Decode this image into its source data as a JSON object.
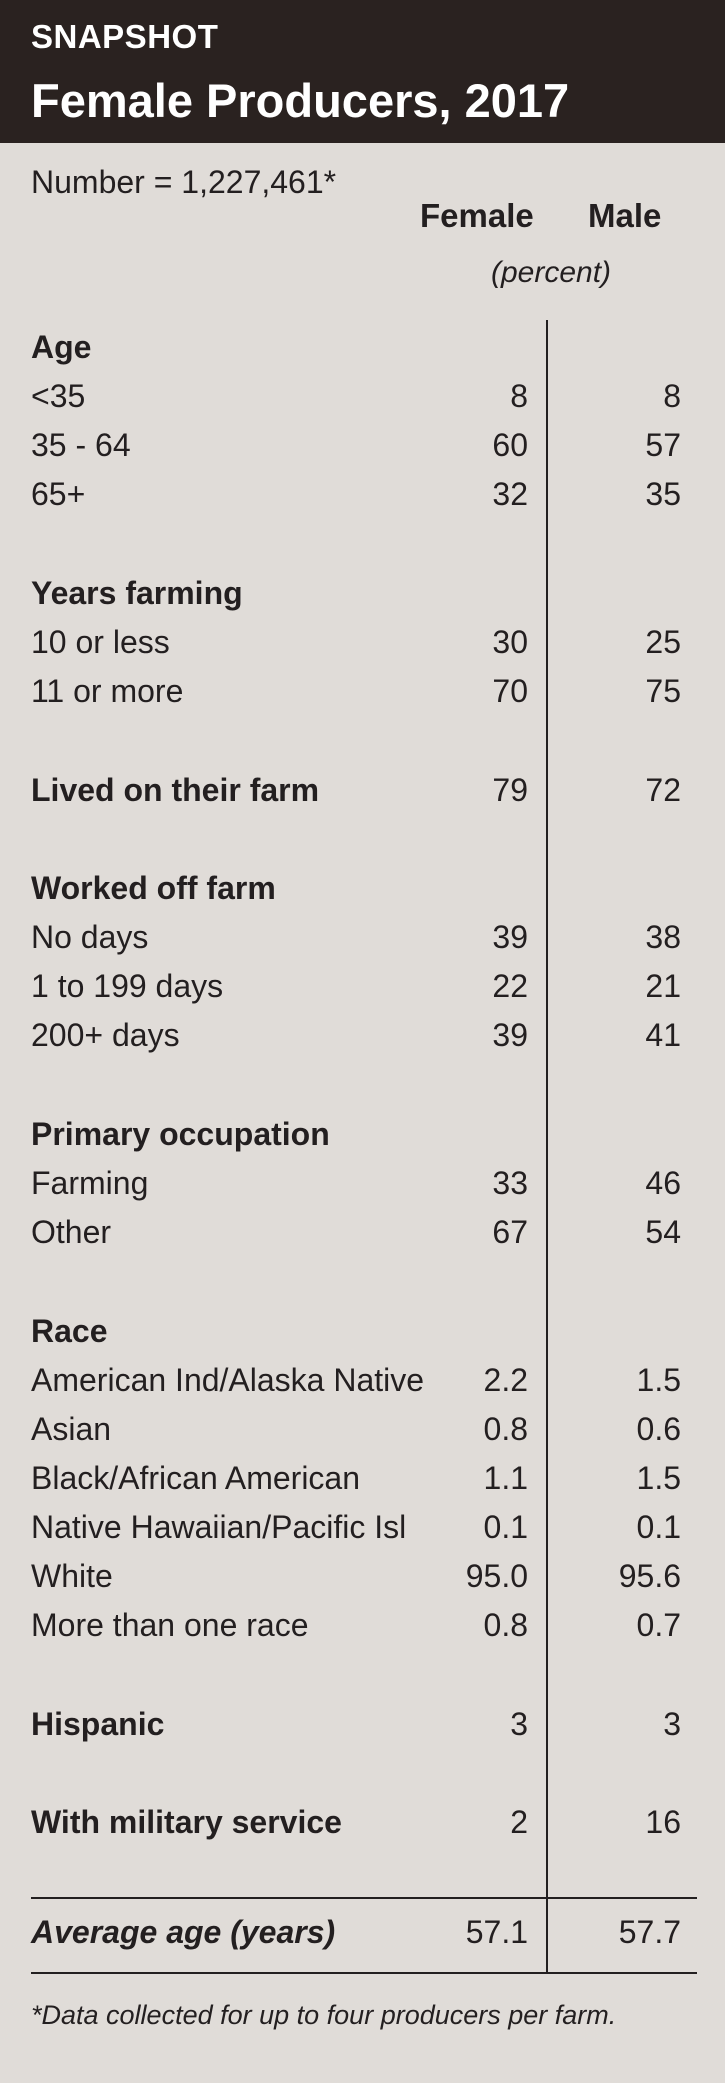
{
  "header": {
    "kicker": "SNAPSHOT",
    "title": "Female Producers, 2017"
  },
  "number_line": "Number = 1,227,461*",
  "columns": {
    "female": "Female",
    "male": "Male",
    "units": "(percent)"
  },
  "sections": {
    "age": {
      "heading": "Age",
      "rows": [
        {
          "label": "<35",
          "female": "8",
          "male": "8"
        },
        {
          "label": "35 - 64",
          "female": "60",
          "male": "57"
        },
        {
          "label": "65+",
          "female": "32",
          "male": "35"
        }
      ]
    },
    "years_farming": {
      "heading": "Years farming",
      "rows": [
        {
          "label": "10 or less",
          "female": "30",
          "male": "25"
        },
        {
          "label": "11 or more",
          "female": "70",
          "male": "75"
        }
      ]
    },
    "lived_on_farm": {
      "label": "Lived on their farm",
      "female": "79",
      "male": "72"
    },
    "worked_off_farm": {
      "heading": "Worked off farm",
      "rows": [
        {
          "label": "No days",
          "female": "39",
          "male": "38"
        },
        {
          "label": "1 to 199 days",
          "female": "22",
          "male": "21"
        },
        {
          "label": "200+ days",
          "female": "39",
          "male": "41"
        }
      ]
    },
    "primary_occupation": {
      "heading": "Primary occupation",
      "rows": [
        {
          "label": "Farming",
          "female": "33",
          "male": "46"
        },
        {
          "label": "Other",
          "female": "67",
          "male": "54"
        }
      ]
    },
    "race": {
      "heading": "Race",
      "rows": [
        {
          "label": "American Ind/Alaska Native",
          "female": "2.2",
          "male": "1.5"
        },
        {
          "label": "Asian",
          "female": "0.8",
          "male": "0.6"
        },
        {
          "label": "Black/African American",
          "female": "1.1",
          "male": "1.5"
        },
        {
          "label": "Native Hawaiian/Pacific Isl",
          "female": "0.1",
          "male": "0.1"
        },
        {
          "label": "White",
          "female": "95.0",
          "male": "95.6"
        },
        {
          "label": "More than one race",
          "female": "0.8",
          "male": "0.7"
        }
      ]
    },
    "hispanic": {
      "label": "Hispanic",
      "female": "3",
      "male": "3"
    },
    "military": {
      "label": "With military service",
      "female": "2",
      "male": "16"
    },
    "average_age": {
      "label": "Average age (years)",
      "female": "57.1",
      "male": "57.7"
    }
  },
  "footnote": "*Data collected for up to four producers per farm."
}
